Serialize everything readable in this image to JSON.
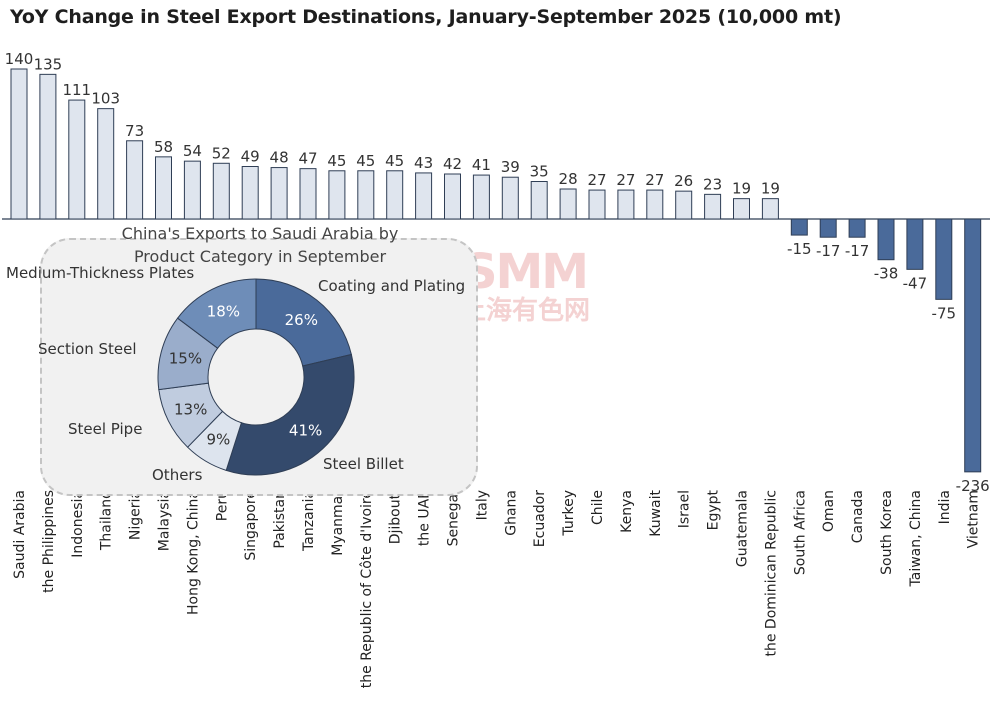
{
  "chart_data": [
    {
      "type": "bar",
      "title": "YoY Change in Steel Export Destinations, January-September 2025 (10,000 mt)",
      "categories": [
        "Saudi Arabia",
        "the Philippines",
        "Indonesia",
        "Thailand",
        "Nigeria",
        "Malaysia",
        "Hong Kong, China",
        "Peru",
        "Singapore",
        "Pakistan",
        "Tanzania",
        "Myanmar",
        "the Republic of Côte d'Ivoire",
        "Djibouti",
        "the UAE",
        "Senegal",
        "Italy",
        "Ghana",
        "Ecuador",
        "Turkey",
        "Chile",
        "Kenya",
        "Kuwait",
        "Israel",
        "Egypt",
        "Guatemala",
        "the Dominican Republic",
        "South Africa",
        "Oman",
        "Canada",
        "South Korea",
        "Taiwan, China",
        "India",
        "Vietnam"
      ],
      "values": [
        140,
        135,
        111,
        103,
        73,
        58,
        54,
        52,
        49,
        48,
        47,
        45,
        45,
        45,
        43,
        42,
        41,
        39,
        35,
        28,
        27,
        27,
        27,
        26,
        23,
        19,
        19,
        -15,
        -17,
        -17,
        -38,
        -47,
        -75,
        -236
      ],
      "xlabel": "",
      "ylabel": "",
      "grid": false,
      "colors": {
        "positive": "#dfe5ee",
        "negative": "#4a6a9a",
        "border": "#2f3e55"
      }
    },
    {
      "type": "pie",
      "donut": true,
      "title": "China's Exports to Saudi Arabia by Product Category in September",
      "categories": [
        "Coating and Plating",
        "Steel Billet",
        "Others",
        "Steel Pipe",
        "Section Steel",
        "Medium-Thickness Plates"
      ],
      "values": [
        26,
        41,
        9,
        13,
        15,
        18
      ],
      "labels": [
        "26%",
        "41%",
        "9%",
        "13%",
        "15%",
        "18%"
      ],
      "colors": [
        "#4a6a9a",
        "#344a6c",
        "#dde4ee",
        "#c0ccdf",
        "#9aadcb",
        "#6e8db8"
      ]
    }
  ],
  "watermark": {
    "line1": "SMM",
    "line2": "上海有色网"
  }
}
